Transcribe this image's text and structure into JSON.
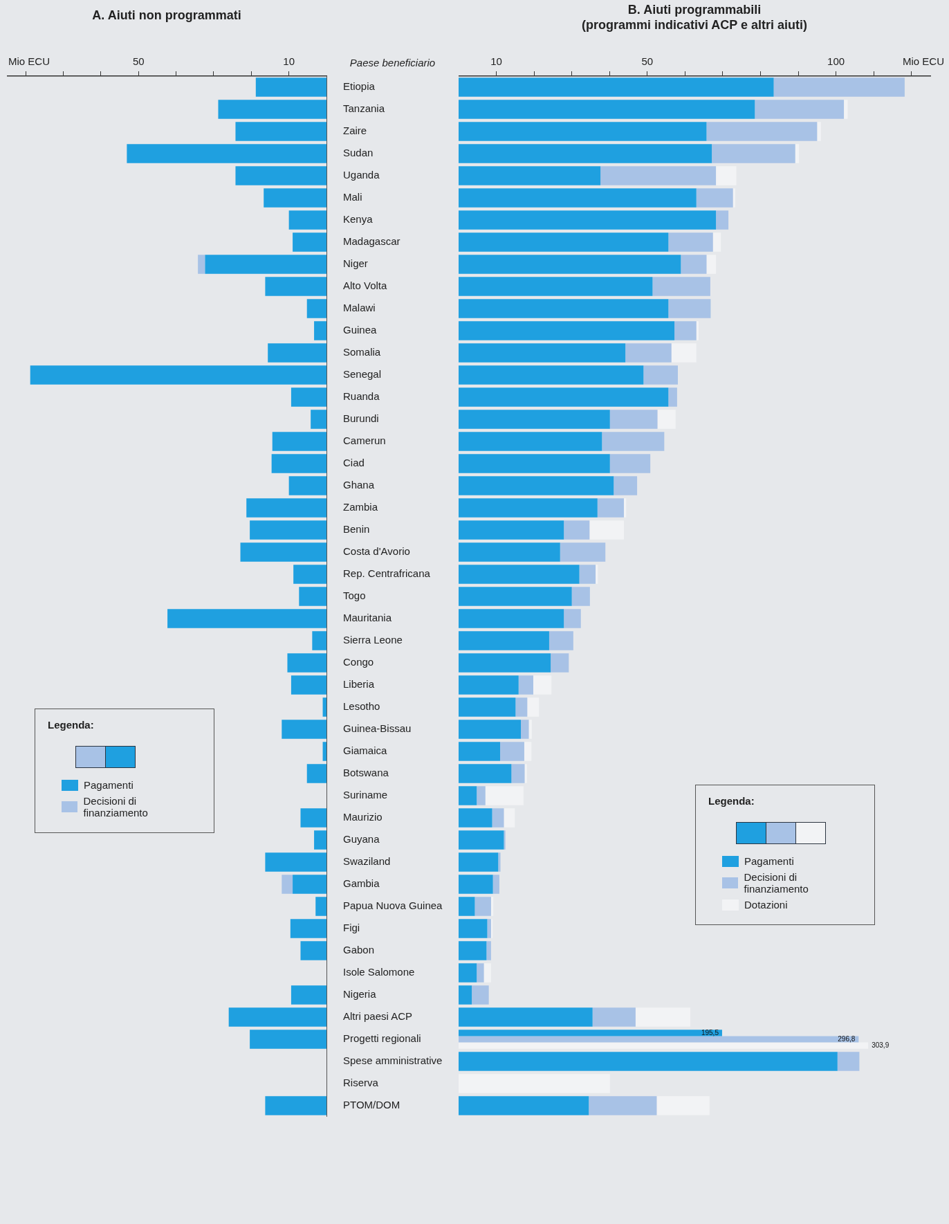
{
  "chart_data": [
    {
      "type": "bar",
      "orientation": "horizontal",
      "stacked": true,
      "title": "A. Aiuti non programmati",
      "ylabel": "Paese beneficiario",
      "xlabel": "Mio ECU",
      "legend": "bottom left",
      "legend_title": "Legenda:",
      "categories": [
        "Etiopia",
        "Tanzania",
        "Zaire",
        "Sudan",
        "Uganda",
        "Mali",
        "Kenya",
        "Madagascar",
        "Niger",
        "Alto Volta",
        "Malawi",
        "Guinea",
        "Somalia",
        "Senegal",
        "Ruanda",
        "Burundi",
        "Camerun",
        "Ciad",
        "Ghana",
        "Zambia",
        "Benin",
        "Costa d'Avorio",
        "Rep. Centrafricana",
        "Togo",
        "Mauritania",
        "Sierra Leone",
        "Congo",
        "Liberia",
        "Lesotho",
        "Guinea-Bissau",
        "Giamaica",
        "Botswana",
        "Suriname",
        "Maurizio",
        "Guyana",
        "Swaziland",
        "Gambia",
        "Papua Nuova Guinea",
        "Figi",
        "Gabon",
        "Isole Salomone",
        "Nigeria",
        "Altri paesi ACP",
        "Progetti regionali",
        "Spese amministrative",
        "Riserva",
        "PTOM/DOM"
      ],
      "xlim": [
        85,
        0
      ],
      "xticks": [
        {
          "value": 80,
          "label": null
        },
        {
          "value": 70,
          "label": null
        },
        {
          "value": 60,
          "label": null
        },
        50,
        {
          "value": 40,
          "label": null
        },
        {
          "value": 30,
          "label": null
        },
        {
          "value": 20,
          "label": null
        },
        10
      ],
      "series": [
        {
          "name": "Pagamenti",
          "color": "#1fa0e0",
          "values": [
            18.8,
            28.8,
            24.2,
            53.1,
            24.2,
            16.7,
            10.0,
            9.0,
            32.3,
            16.3,
            5.2,
            3.3,
            15.6,
            78.8,
            9.4,
            4.2,
            14.4,
            14.6,
            10.0,
            21.3,
            20.4,
            22.9,
            8.8,
            7.3,
            42.3,
            3.8,
            10.4,
            9.4,
            1.0,
            11.9,
            1.0,
            5.2,
            null,
            6.9,
            3.3,
            16.3,
            9.0,
            2.9,
            9.6,
            6.9,
            null,
            9.4,
            26.0,
            20.4,
            null,
            null,
            16.3
          ]
        },
        {
          "name": "Decisioni di finanziamento",
          "color": "#a8c2e6",
          "values": [
            null,
            null,
            null,
            null,
            null,
            null,
            null,
            null,
            1.9,
            null,
            null,
            null,
            null,
            null,
            null,
            null,
            null,
            null,
            null,
            null,
            null,
            null,
            null,
            null,
            null,
            null,
            null,
            null,
            null,
            null,
            null,
            null,
            null,
            null,
            null,
            null,
            2.9,
            null,
            null,
            null,
            null,
            null,
            null,
            null,
            null,
            null,
            null
          ]
        }
      ]
    },
    {
      "type": "bar",
      "orientation": "horizontal",
      "stacked": true,
      "title": "B. Aiuti programmabili",
      "subtitle": "(programmi indicativi ACP e altri aiuti)",
      "xlabel": "Mio ECU",
      "legend": "bottom right",
      "legend_title": "Legenda:",
      "tick_labels": "x",
      "categories": [
        null,
        null,
        null,
        null,
        null,
        null,
        null,
        null,
        null,
        null,
        null,
        null,
        null,
        null,
        null,
        null,
        null,
        null,
        null,
        null,
        null,
        null,
        null,
        null,
        null,
        null,
        null,
        null,
        null,
        null,
        null,
        null,
        null,
        null,
        null,
        null,
        null,
        null,
        null,
        null,
        null,
        null,
        null,
        null,
        null,
        null,
        null
      ],
      "xlim": [
        0,
        125
      ],
      "xticks": [
        10,
        {
          "value": 20,
          "label": null
        },
        {
          "value": 30,
          "label": null
        },
        {
          "value": 40,
          "label": null
        },
        50,
        {
          "value": 60,
          "label": null
        },
        {
          "value": 70,
          "label": null
        },
        {
          "value": 80,
          "label": null
        },
        {
          "value": 90,
          "label": null
        },
        100,
        {
          "value": 110,
          "label": null
        },
        {
          "value": 120,
          "label": null
        }
      ],
      "series": [
        {
          "name": "Pagamenti",
          "color": "#1fa0e0",
          "values": [
            83.5,
            78.5,
            65.7,
            67.1,
            37.6,
            63.0,
            68.2,
            55.6,
            58.9,
            51.4,
            55.6,
            57.2,
            44.2,
            49.0,
            55.6,
            40.1,
            38.0,
            40.1,
            41.1,
            36.8,
            27.9,
            26.9,
            32.0,
            30.0,
            27.9,
            24.0,
            24.4,
            15.9,
            15.1,
            16.5,
            11.0,
            14.0,
            4.8,
            8.9,
            12.0,
            10.5,
            9.1,
            4.3,
            7.6,
            7.4,
            4.8,
            3.5,
            35.5,
            null,
            100.4,
            null,
            34.5
          ]
        },
        {
          "name": "Decisioni di finanziamento",
          "color": "#a8c2e6",
          "values": [
            34.7,
            23.6,
            29.3,
            22.1,
            30.6,
            9.7,
            3.3,
            11.8,
            6.8,
            15.3,
            11.2,
            5.8,
            12.2,
            9.1,
            2.3,
            12.6,
            16.5,
            10.7,
            6.2,
            7.0,
            6.8,
            12.0,
            4.3,
            4.8,
            4.5,
            6.4,
            4.8,
            3.9,
            3.1,
            2.1,
            6.4,
            3.5,
            2.3,
            3.1,
            0.4,
            0.6,
            1.7,
            4.3,
            1.0,
            1.2,
            1.9,
            4.5,
            11.4,
            null,
            5.8,
            null,
            18.0
          ]
        },
        {
          "name": "Dotazioni",
          "color": "#f2f3f5",
          "values": [
            null,
            1.0,
            1.0,
            1.0,
            5.4,
            0.6,
            null,
            2.1,
            2.5,
            null,
            null,
            0.6,
            6.6,
            null,
            null,
            4.8,
            null,
            null,
            null,
            0.6,
            9.1,
            null,
            0.6,
            null,
            null,
            null,
            null,
            4.8,
            3.1,
            0.8,
            1.9,
            0.6,
            10.1,
            2.9,
            null,
            null,
            null,
            0.6,
            0.4,
            null,
            1.9,
            null,
            14.5,
            null,
            null,
            40.1,
            14.0
          ]
        }
      ]
    },
    {
      "type": "bar",
      "orientation": "horizontal",
      "tick_labels": false,
      "categories": [
        null
      ],
      "series": [
        {
          "color": "#1fa0e0",
          "values": [
            195.5
          ],
          "value_labels": [
            "195,5"
          ]
        },
        {
          "color": "#a8c2e6",
          "values": [
            296.8
          ],
          "value_labels": [
            "296,8"
          ]
        },
        {
          "color": "#f2f3f5",
          "values": [
            303.9
          ],
          "value_labels": [
            "303,9"
          ]
        }
      ]
    }
  ]
}
